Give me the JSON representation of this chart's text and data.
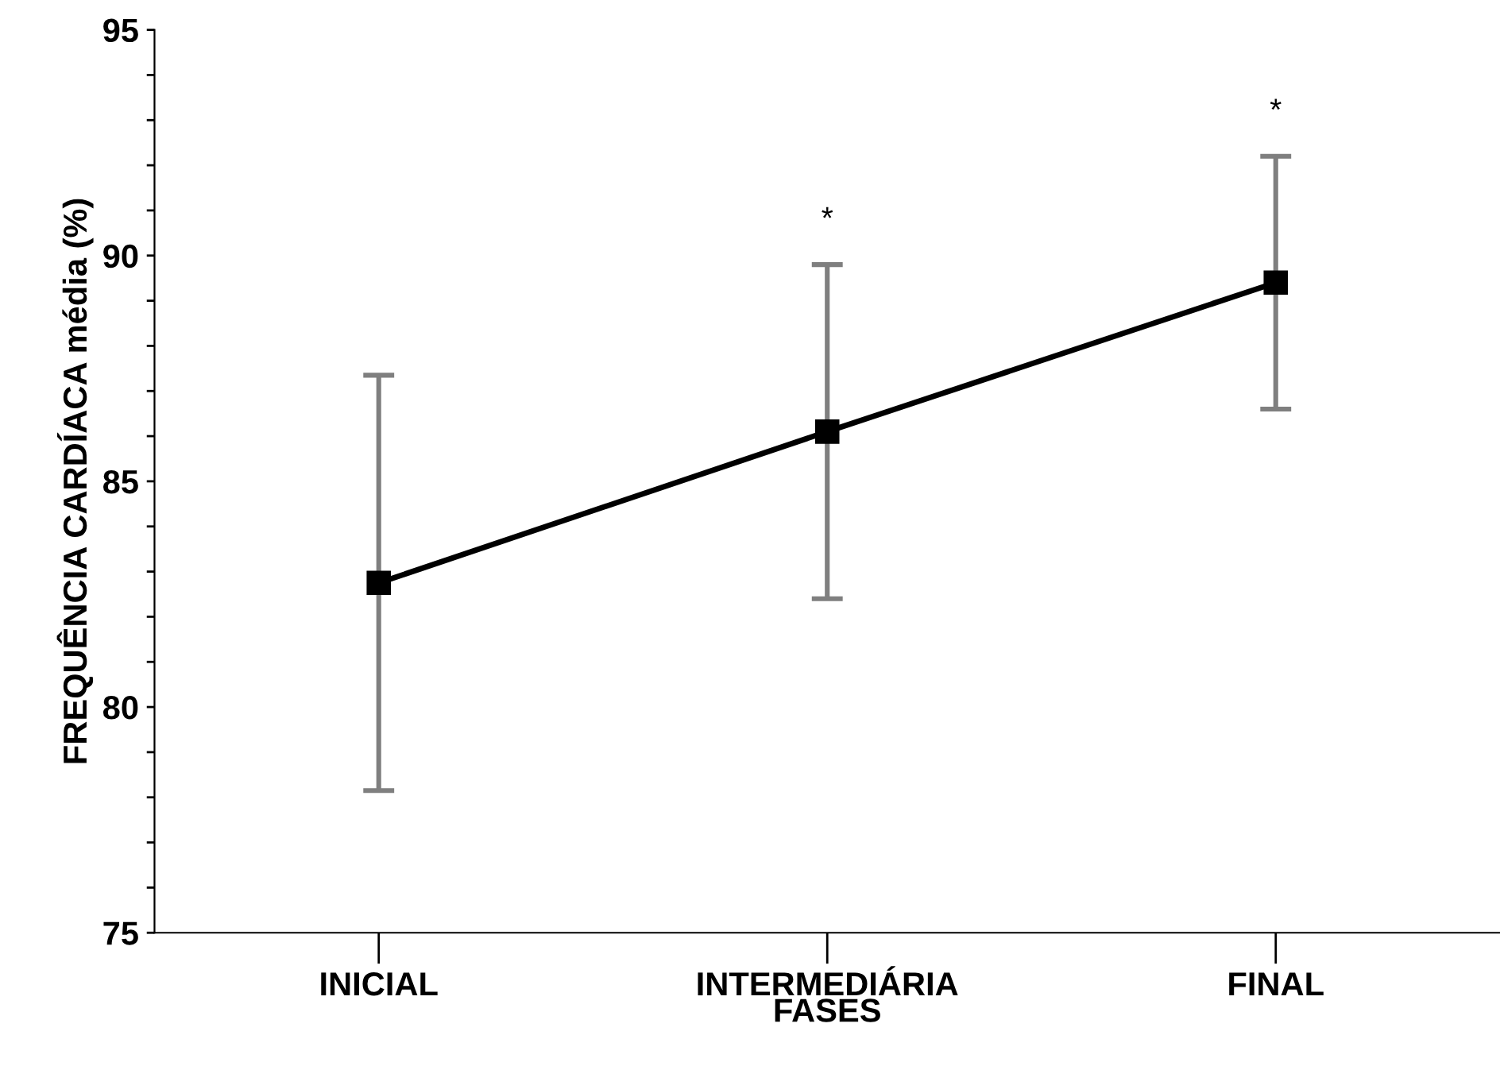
{
  "chart_data": {
    "type": "line",
    "xlabel": "FASES",
    "ylabel": "FREQUÊNCIA CARDÍACA média (%)",
    "categories": [
      "INICIAL",
      "INTERMEDIÁRIA",
      "FINAL"
    ],
    "series": [
      {
        "color": "#000000",
        "values": [
          82.75,
          86.1,
          89.4
        ],
        "errors": [
          4.6,
          3.7,
          2.8
        ]
      }
    ],
    "ylim": [
      75,
      95
    ],
    "yticks": [
      75,
      {
        "value": 76,
        "label": null
      },
      {
        "value": 77,
        "label": null
      },
      {
        "value": 78,
        "label": null
      },
      {
        "value": 79,
        "label": null
      },
      80,
      {
        "value": 81,
        "label": null
      },
      {
        "value": 82,
        "label": null
      },
      {
        "value": 83,
        "label": null
      },
      {
        "value": 84,
        "label": null
      },
      85,
      {
        "value": 86,
        "label": null
      },
      {
        "value": 87,
        "label": null
      },
      {
        "value": 88,
        "label": null
      },
      {
        "value": 89,
        "label": null
      },
      90,
      {
        "value": 91,
        "label": null
      },
      {
        "value": 92,
        "label": null
      },
      {
        "value": 93,
        "label": null
      },
      {
        "value": 94,
        "label": null
      },
      95
    ],
    "annotations": [
      "*",
      "*"
    ],
    "marker": "square",
    "line_style": "solid",
    "grid": false,
    "legend": false
  }
}
